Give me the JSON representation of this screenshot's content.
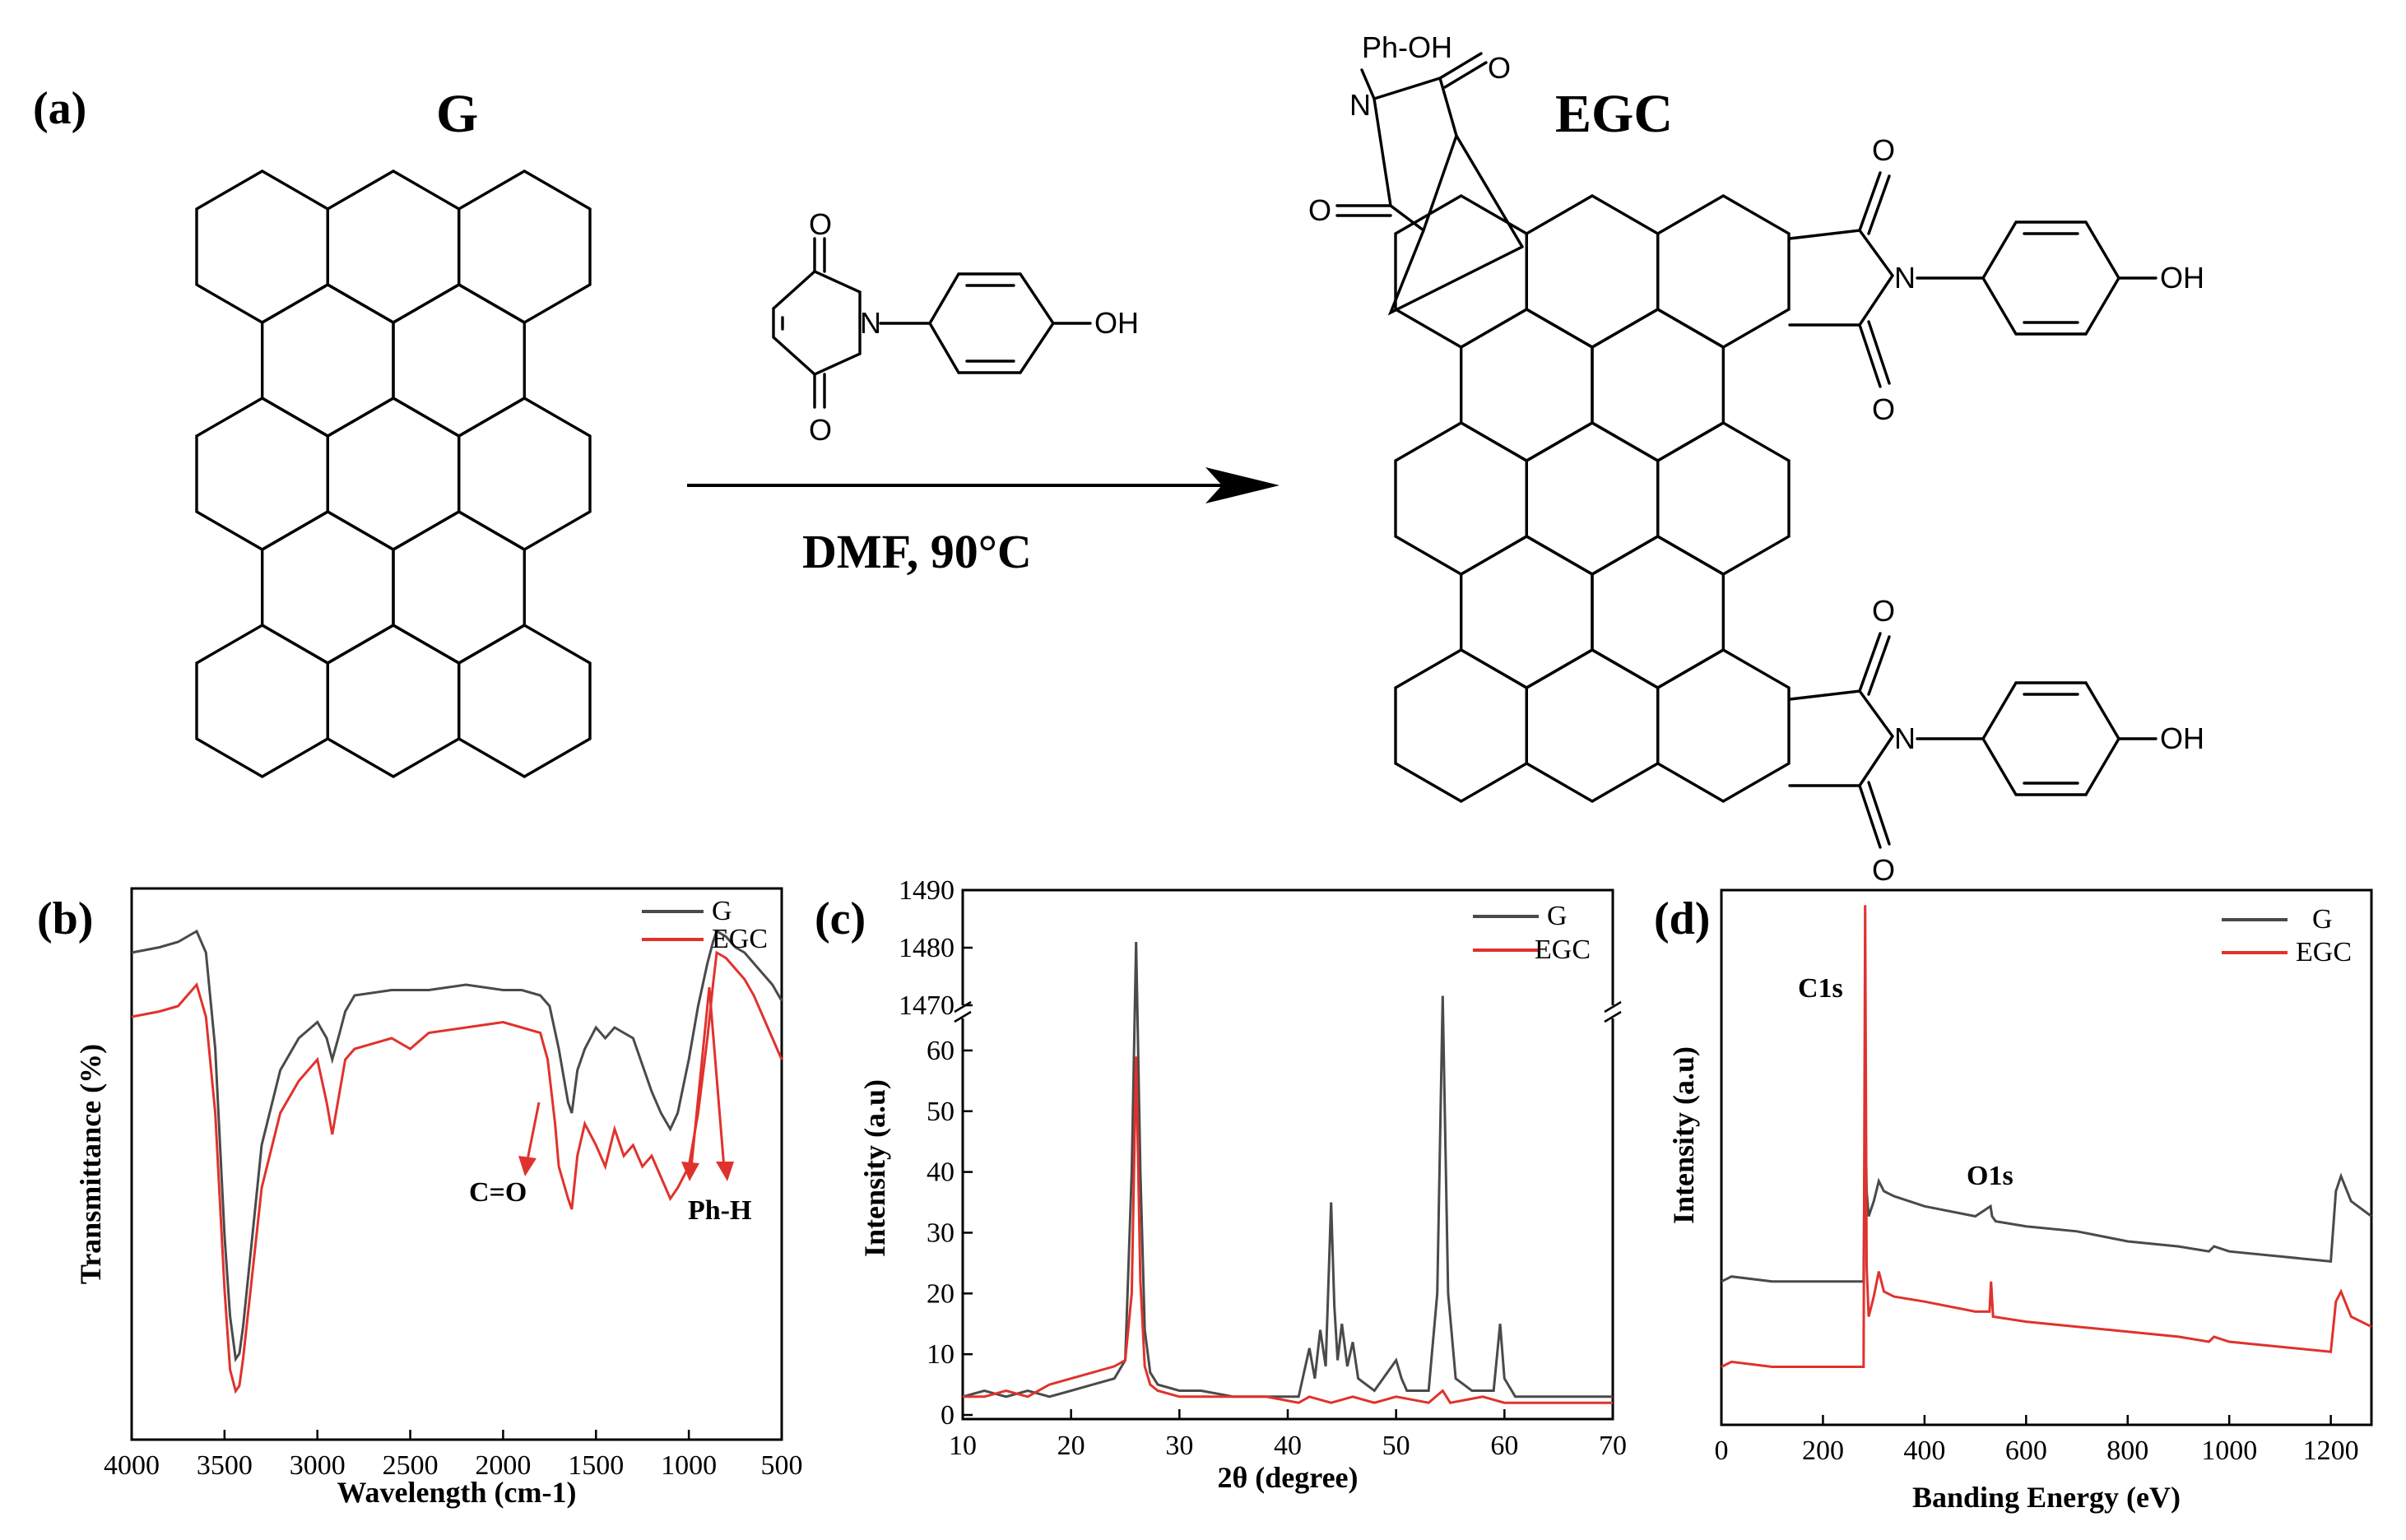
{
  "panel_a": {
    "label": "(a)",
    "reactant_label": "G",
    "product_label": "EGC",
    "conditions": "DMF, 90°C",
    "atoms": {
      "oxygen": "O",
      "nitrogen": "N",
      "hydroxyl": "OH",
      "phenol": "Ph-OH"
    }
  },
  "colors": {
    "G": "#4a4a4a",
    "EGC": "#e0322d",
    "arrow": "#e0322d"
  },
  "chart_data": [
    {
      "panel": "(b)",
      "type": "line",
      "title": "",
      "xlabel": "Wavelength (cm-1)",
      "ylabel": "Transmittance (%)",
      "xlim": [
        4000,
        500
      ],
      "x_reversed": true,
      "ylim": [
        0,
        100
      ],
      "x_ticks": [
        "4000",
        "3500",
        "3000",
        "2500",
        "2000",
        "1500",
        "1000",
        "500"
      ],
      "y_ticks_shown": false,
      "legend": [
        "G",
        "EGC"
      ],
      "legend_position": "top-right",
      "annotations": [
        "C=O",
        "Ph-H"
      ],
      "series": [
        {
          "name": "G",
          "x": [
            4000,
            3850,
            3750,
            3700,
            3650,
            3600,
            3550,
            3500,
            3470,
            3440,
            3420,
            3400,
            3350,
            3300,
            3200,
            3100,
            3000,
            2950,
            2920,
            2880,
            2850,
            2800,
            2600,
            2400,
            2200,
            2000,
            1900,
            1800,
            1750,
            1700,
            1650,
            1630,
            1600,
            1560,
            1500,
            1450,
            1400,
            1350,
            1300,
            1250,
            1200,
            1150,
            1100,
            1060,
            1000,
            950,
            900,
            870,
            850,
            800,
            750,
            700,
            650,
            600,
            550,
            500
          ],
          "y": [
            88,
            89,
            90,
            91,
            92,
            88,
            70,
            35,
            20,
            12,
            13,
            18,
            35,
            52,
            66,
            72,
            75,
            72,
            68,
            73,
            77,
            80,
            81,
            81,
            82,
            81,
            81,
            80,
            78,
            70,
            60,
            58,
            66,
            70,
            74,
            72,
            74,
            73,
            72,
            67,
            62,
            58,
            55,
            58,
            68,
            78,
            86,
            90,
            92,
            91,
            89,
            88,
            86,
            84,
            82,
            79
          ]
        },
        {
          "name": "EGC",
          "x": [
            4000,
            3850,
            3750,
            3700,
            3650,
            3600,
            3550,
            3500,
            3470,
            3440,
            3420,
            3400,
            3350,
            3300,
            3200,
            3100,
            3000,
            2950,
            2920,
            2880,
            2850,
            2800,
            2600,
            2500,
            2400,
            2200,
            2000,
            1900,
            1800,
            1760,
            1720,
            1700,
            1650,
            1630,
            1600,
            1560,
            1500,
            1450,
            1400,
            1350,
            1300,
            1250,
            1200,
            1150,
            1100,
            1060,
            1000,
            950,
            900,
            870,
            850,
            800,
            750,
            700,
            650,
            600,
            550,
            500
          ],
          "y": [
            76,
            77,
            78,
            80,
            82,
            76,
            58,
            25,
            10,
            6,
            7,
            12,
            28,
            44,
            58,
            64,
            68,
            60,
            54,
            62,
            68,
            70,
            72,
            70,
            73,
            74,
            75,
            74,
            73,
            68,
            56,
            48,
            42,
            40,
            50,
            56,
            52,
            48,
            55,
            50,
            52,
            48,
            50,
            46,
            42,
            44,
            48,
            58,
            72,
            82,
            88,
            87,
            85,
            83,
            80,
            76,
            72,
            68
          ]
        }
      ]
    },
    {
      "panel": "(c)",
      "type": "line",
      "title": "",
      "xlabel": "2θ (degree)",
      "ylabel": "Intensity (a.u)",
      "xlim": [
        10,
        70
      ],
      "ylim_lower": [
        0,
        65
      ],
      "ylim_upper": [
        1470,
        1490
      ],
      "y_axis_break": true,
      "x_ticks": [
        "10",
        "20",
        "30",
        "40",
        "50",
        "60",
        "70"
      ],
      "y_ticks_lower": [
        "0",
        "10",
        "20",
        "30",
        "40",
        "50",
        "60"
      ],
      "y_ticks_upper": [
        "1470",
        "1480",
        "1490"
      ],
      "legend": [
        "G",
        "EGC"
      ],
      "legend_position": "top-right",
      "series": [
        {
          "name": "G",
          "x": [
            10,
            12,
            14,
            16,
            18,
            20,
            22,
            24,
            25,
            25.6,
            26,
            26.4,
            26.8,
            27.3,
            28,
            30,
            32,
            35,
            38,
            41,
            42,
            42.5,
            43,
            43.5,
            44,
            44.3,
            44.6,
            45,
            45.5,
            46,
            46.5,
            48,
            50,
            50.5,
            51,
            53,
            53.8,
            54.3,
            54.8,
            55.5,
            57,
            59,
            59.6,
            60,
            61,
            63,
            66,
            70
          ],
          "y": [
            3,
            4,
            3,
            4,
            3,
            4,
            5,
            6,
            9,
            40,
            1481,
            40,
            14,
            7,
            5,
            4,
            4,
            3,
            3,
            3,
            11,
            6,
            14,
            8,
            35,
            18,
            9,
            15,
            8,
            12,
            6,
            4,
            9,
            6,
            4,
            4,
            20,
            69,
            20,
            6,
            4,
            4,
            15,
            6,
            3,
            3,
            3,
            3
          ]
        },
        {
          "name": "EGC",
          "x": [
            10,
            12,
            14,
            16,
            18,
            20,
            22,
            24,
            25,
            25.6,
            26,
            26.4,
            26.8,
            27.3,
            28,
            30,
            32,
            35,
            38,
            41,
            42,
            44,
            46,
            48,
            50,
            53,
            54.3,
            55,
            58,
            60,
            63,
            66,
            70
          ],
          "y": [
            3,
            3,
            4,
            3,
            5,
            6,
            7,
            8,
            9,
            20,
            59,
            22,
            8,
            5,
            4,
            3,
            3,
            3,
            3,
            2,
            3,
            2,
            3,
            2,
            3,
            2,
            4,
            2,
            3,
            2,
            2,
            2,
            2
          ]
        }
      ]
    },
    {
      "panel": "(d)",
      "type": "line",
      "title": "",
      "xlabel": "Banding Energy (eV)",
      "ylabel": "Intensity (a.u)",
      "xlim": [
        0,
        1280
      ],
      "ylim": [
        0,
        100
      ],
      "x_ticks": [
        "0",
        "200",
        "400",
        "600",
        "800",
        "1000",
        "1200"
      ],
      "y_ticks_shown": false,
      "legend": [
        "G",
        "EGC"
      ],
      "legend_position": "top-right",
      "peak_labels": [
        "C1s",
        "O1s"
      ],
      "series": [
        {
          "name": "G",
          "x": [
            0,
            20,
            100,
            200,
            270,
            280,
            283,
            286,
            290,
            300,
            310,
            320,
            340,
            400,
            500,
            530,
            533,
            540,
            600,
            700,
            800,
            900,
            960,
            970,
            1000,
            1100,
            1200,
            1210,
            1220,
            1240,
            1280
          ],
          "y": [
            22,
            23,
            22,
            22,
            22,
            22,
            60,
            40,
            35,
            38,
            42,
            40,
            39,
            37,
            35,
            37,
            35,
            34,
            33,
            32,
            30,
            29,
            28,
            29,
            28,
            27,
            26,
            40,
            43,
            38,
            35
          ]
        },
        {
          "name": "EGC",
          "x": [
            0,
            20,
            100,
            200,
            270,
            280,
            283,
            286,
            290,
            300,
            310,
            320,
            340,
            400,
            500,
            528,
            531,
            535,
            600,
            700,
            800,
            900,
            960,
            970,
            1000,
            1100,
            1200,
            1210,
            1220,
            1240,
            1280
          ],
          "y": [
            5,
            6,
            5,
            5,
            5,
            5,
            97,
            25,
            15,
            19,
            24,
            20,
            19,
            18,
            16,
            16,
            22,
            15,
            14,
            13,
            12,
            11,
            10,
            11,
            10,
            9,
            8,
            18,
            20,
            15,
            13
          ]
        }
      ]
    }
  ]
}
